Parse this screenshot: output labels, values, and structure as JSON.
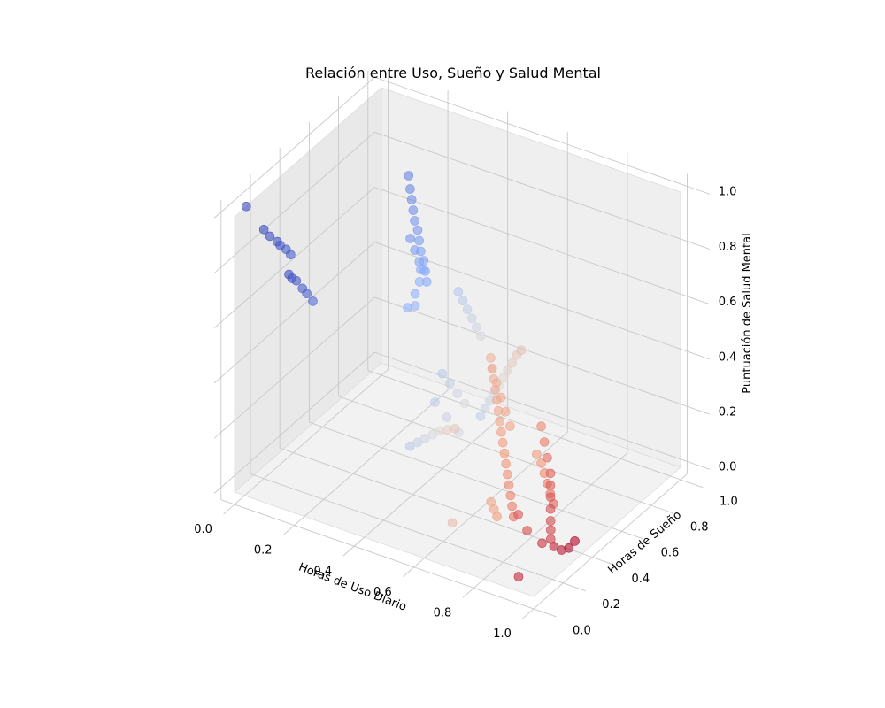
{
  "chart_data": {
    "type": "scatter",
    "projection": "3d",
    "title": "Relación entre Uso, Sueño y Salud Mental",
    "xlabel": "Horas de Uso Diario",
    "ylabel": "Horas de Sueño",
    "zlabel": "Puntuación de Salud Mental",
    "xlim": [
      0,
      1
    ],
    "ylim": [
      0,
      1
    ],
    "zlim": [
      0,
      1
    ],
    "x_ticks": [
      "0.0",
      "0.2",
      "0.4",
      "0.6",
      "0.8",
      "1.0"
    ],
    "y_ticks": [
      "0.0",
      "0.2",
      "0.4",
      "0.6",
      "0.8",
      "1.0"
    ],
    "z_ticks": [
      "0.0",
      "0.2",
      "0.4",
      "0.6",
      "0.8",
      "1.0"
    ],
    "colormap": "coolwarm",
    "color_by": "x",
    "grid": true,
    "marker_alpha": 0.6,
    "points": [
      [
        0.0,
        0.08,
        1.0
      ],
      [
        0.0,
        0.2,
        0.86
      ],
      [
        0.01,
        0.22,
        0.83
      ],
      [
        0.02,
        0.25,
        0.8
      ],
      [
        0.03,
        0.25,
        0.79
      ],
      [
        0.04,
        0.27,
        0.77
      ],
      [
        0.05,
        0.28,
        0.75
      ],
      [
        0.01,
        0.35,
        0.63
      ],
      [
        0.02,
        0.35,
        0.62
      ],
      [
        0.03,
        0.36,
        0.61
      ],
      [
        0.05,
        0.36,
        0.59
      ],
      [
        0.06,
        0.37,
        0.57
      ],
      [
        0.08,
        0.37,
        0.55
      ],
      [
        0.14,
        0.9,
        0.78
      ],
      [
        0.15,
        0.89,
        0.74
      ],
      [
        0.16,
        0.88,
        0.71
      ],
      [
        0.17,
        0.87,
        0.68
      ],
      [
        0.18,
        0.86,
        0.65
      ],
      [
        0.19,
        0.86,
        0.62
      ],
      [
        0.2,
        0.85,
        0.59
      ],
      [
        0.21,
        0.84,
        0.56
      ],
      [
        0.22,
        0.84,
        0.53
      ],
      [
        0.23,
        0.83,
        0.5
      ],
      [
        0.24,
        0.82,
        0.47
      ],
      [
        0.18,
        0.83,
        0.6
      ],
      [
        0.2,
        0.82,
        0.57
      ],
      [
        0.22,
        0.81,
        0.54
      ],
      [
        0.23,
        0.8,
        0.52
      ],
      [
        0.26,
        0.76,
        0.55
      ],
      [
        0.26,
        0.73,
        0.52
      ],
      [
        0.26,
        0.7,
        0.49
      ],
      [
        0.27,
        0.68,
        0.46
      ],
      [
        0.25,
        0.67,
        0.45
      ],
      [
        0.42,
        0.82,
        0.05
      ],
      [
        0.44,
        0.81,
        0.09
      ],
      [
        0.46,
        0.8,
        0.13
      ],
      [
        0.48,
        0.79,
        0.17
      ],
      [
        0.5,
        0.78,
        0.21
      ],
      [
        0.52,
        0.77,
        0.25
      ],
      [
        0.54,
        0.76,
        0.29
      ],
      [
        0.56,
        0.75,
        0.33
      ],
      [
        0.58,
        0.74,
        0.37
      ],
      [
        0.6,
        0.73,
        0.4
      ],
      [
        0.38,
        0.75,
        0.52
      ],
      [
        0.4,
        0.74,
        0.5
      ],
      [
        0.42,
        0.73,
        0.48
      ],
      [
        0.44,
        0.72,
        0.46
      ],
      [
        0.46,
        0.71,
        0.44
      ],
      [
        0.48,
        0.7,
        0.42
      ],
      [
        0.4,
        0.6,
        0.3
      ],
      [
        0.43,
        0.59,
        0.28
      ],
      [
        0.46,
        0.58,
        0.26
      ],
      [
        0.49,
        0.57,
        0.24
      ],
      [
        0.4,
        0.38,
        0.14
      ],
      [
        0.43,
        0.37,
        0.17
      ],
      [
        0.46,
        0.36,
        0.2
      ],
      [
        0.49,
        0.35,
        0.23
      ],
      [
        0.52,
        0.34,
        0.26
      ],
      [
        0.55,
        0.33,
        0.28
      ],
      [
        0.58,
        0.32,
        0.3
      ],
      [
        0.4,
        0.55,
        0.22
      ],
      [
        0.44,
        0.55,
        0.18
      ],
      [
        0.48,
        0.55,
        0.14
      ],
      [
        0.66,
        0.4,
        0.55
      ],
      [
        0.67,
        0.39,
        0.52
      ],
      [
        0.68,
        0.38,
        0.49
      ],
      [
        0.69,
        0.37,
        0.46
      ],
      [
        0.7,
        0.36,
        0.43
      ],
      [
        0.71,
        0.35,
        0.4
      ],
      [
        0.72,
        0.34,
        0.37
      ],
      [
        0.73,
        0.33,
        0.34
      ],
      [
        0.74,
        0.32,
        0.31
      ],
      [
        0.75,
        0.31,
        0.28
      ],
      [
        0.76,
        0.3,
        0.25
      ],
      [
        0.77,
        0.29,
        0.22
      ],
      [
        0.78,
        0.28,
        0.19
      ],
      [
        0.79,
        0.27,
        0.16
      ],
      [
        0.8,
        0.26,
        0.13
      ],
      [
        0.81,
        0.25,
        0.1
      ],
      [
        0.64,
        0.45,
        0.48
      ],
      [
        0.66,
        0.44,
        0.44
      ],
      [
        0.68,
        0.43,
        0.4
      ],
      [
        0.7,
        0.42,
        0.36
      ],
      [
        0.72,
        0.41,
        0.32
      ],
      [
        0.78,
        0.5,
        0.3
      ],
      [
        0.8,
        0.48,
        0.26
      ],
      [
        0.82,
        0.46,
        0.22
      ],
      [
        0.84,
        0.44,
        0.18
      ],
      [
        0.85,
        0.42,
        0.15
      ],
      [
        0.86,
        0.4,
        0.12
      ],
      [
        0.87,
        0.38,
        0.09
      ],
      [
        0.88,
        0.36,
        0.06
      ],
      [
        0.89,
        0.34,
        0.04
      ],
      [
        0.9,
        0.32,
        0.02
      ],
      [
        0.74,
        0.55,
        0.16
      ],
      [
        0.76,
        0.54,
        0.14
      ],
      [
        0.78,
        0.52,
        0.12
      ],
      [
        0.8,
        0.5,
        0.1
      ],
      [
        0.82,
        0.48,
        0.08
      ],
      [
        0.84,
        0.46,
        0.06
      ],
      [
        0.7,
        0.32,
        0.08
      ],
      [
        0.72,
        0.3,
        0.07
      ],
      [
        0.74,
        0.28,
        0.06
      ],
      [
        0.62,
        0.22,
        0.02
      ],
      [
        0.86,
        0.18,
        0.16
      ],
      [
        0.88,
        0.2,
        0.1
      ],
      [
        0.92,
        0.22,
        0.06
      ],
      [
        0.95,
        0.24,
        0.05
      ],
      [
        0.97,
        0.25,
        0.04
      ],
      [
        0.99,
        0.26,
        0.05
      ],
      [
        1.0,
        0.28,
        0.07
      ],
      [
        0.94,
        0.02,
        0.04
      ]
    ]
  }
}
